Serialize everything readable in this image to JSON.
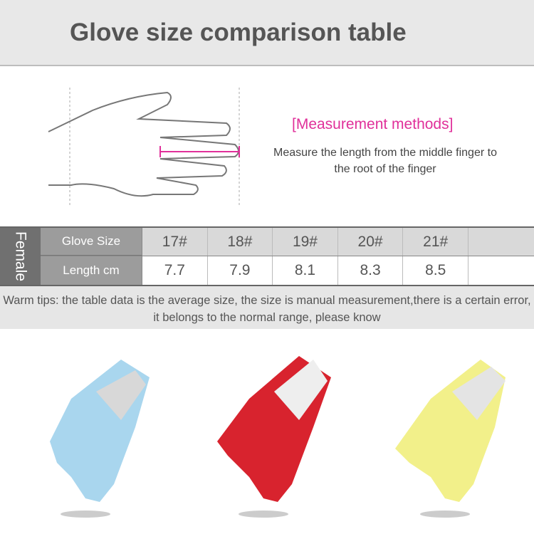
{
  "title": "Glove size comparison table",
  "measurement": {
    "title": "[Measurement methods]",
    "description": "Measure the length from the middle finger to the root of the finger"
  },
  "table": {
    "group": "Female",
    "row_labels": [
      "Glove Size",
      "Length cm"
    ],
    "sizes": [
      "17#",
      "18#",
      "19#",
      "20#",
      "21#",
      ""
    ],
    "lengths": [
      "7.7",
      "7.9",
      "8.1",
      "8.3",
      "8.5",
      ""
    ]
  },
  "tips": "Warm tips: the table data is the average size, the size is manual measurement,there is a certain error, it belongs to the normal range, please know",
  "colors": {
    "accent": "#e0309a",
    "glove_colors": [
      "#a9d6ee",
      "#d8232e",
      "#f2f08a"
    ]
  }
}
